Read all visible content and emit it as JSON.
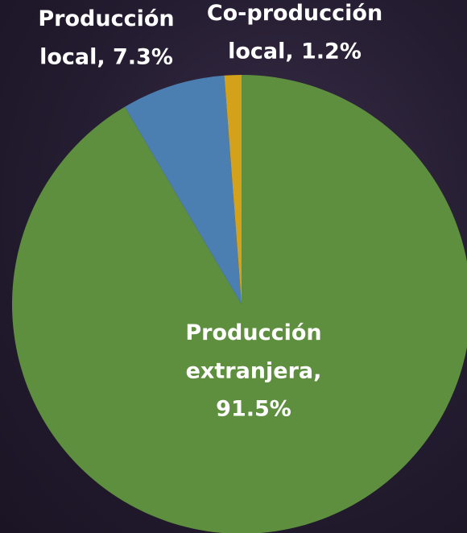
{
  "chart_data": {
    "type": "pie",
    "values": [
      91.5,
      7.3,
      1.2
    ],
    "value_labels": [
      "Producción extranjera, 91.5%",
      "Producción local, 7.3%",
      "Co-producción local, 1.2%"
    ],
    "colors": [
      "#5e8f3e",
      "#4b7eb1",
      "#d4a11a"
    ]
  }
}
